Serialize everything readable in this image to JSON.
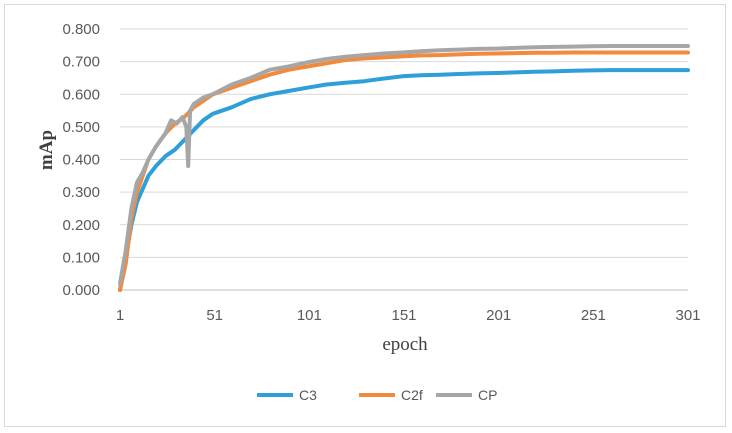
{
  "chart_data": {
    "type": "line",
    "title": "",
    "xlabel": "epoch",
    "ylabel": "mAp",
    "xlim": [
      1,
      301
    ],
    "ylim": [
      0,
      0.8
    ],
    "x_ticks": [
      "1",
      "51",
      "101",
      "151",
      "201",
      "251",
      "301"
    ],
    "y_ticks": [
      "0.000",
      "0.100",
      "0.200",
      "0.300",
      "0.400",
      "0.500",
      "0.600",
      "0.700",
      "0.800"
    ],
    "grid": "horizontal",
    "legend_position": "bottom",
    "series": [
      {
        "name": "C3",
        "color": "#2e9fd8",
        "points": [
          [
            1,
            0.0
          ],
          [
            4,
            0.1
          ],
          [
            7,
            0.2
          ],
          [
            10,
            0.27
          ],
          [
            13,
            0.31
          ],
          [
            16,
            0.35
          ],
          [
            20,
            0.38
          ],
          [
            25,
            0.41
          ],
          [
            30,
            0.43
          ],
          [
            35,
            0.46
          ],
          [
            40,
            0.49
          ],
          [
            45,
            0.52
          ],
          [
            50,
            0.54
          ],
          [
            60,
            0.56
          ],
          [
            70,
            0.585
          ],
          [
            80,
            0.6
          ],
          [
            90,
            0.61
          ],
          [
            100,
            0.62
          ],
          [
            110,
            0.63
          ],
          [
            120,
            0.635
          ],
          [
            130,
            0.64
          ],
          [
            140,
            0.648
          ],
          [
            150,
            0.655
          ],
          [
            160,
            0.658
          ],
          [
            170,
            0.66
          ],
          [
            180,
            0.662
          ],
          [
            190,
            0.664
          ],
          [
            200,
            0.665
          ],
          [
            210,
            0.667
          ],
          [
            220,
            0.669
          ],
          [
            230,
            0.67
          ],
          [
            240,
            0.672
          ],
          [
            250,
            0.673
          ],
          [
            260,
            0.674
          ],
          [
            270,
            0.674
          ],
          [
            280,
            0.674
          ],
          [
            290,
            0.674
          ],
          [
            301,
            0.674
          ]
        ]
      },
      {
        "name": "C2f",
        "color": "#f28a3c",
        "points": [
          [
            1,
            0.0
          ],
          [
            4,
            0.08
          ],
          [
            7,
            0.22
          ],
          [
            10,
            0.3
          ],
          [
            13,
            0.35
          ],
          [
            16,
            0.4
          ],
          [
            20,
            0.44
          ],
          [
            25,
            0.48
          ],
          [
            30,
            0.51
          ],
          [
            35,
            0.53
          ],
          [
            40,
            0.56
          ],
          [
            45,
            0.58
          ],
          [
            50,
            0.6
          ],
          [
            60,
            0.62
          ],
          [
            70,
            0.64
          ],
          [
            80,
            0.66
          ],
          [
            90,
            0.675
          ],
          [
            100,
            0.685
          ],
          [
            110,
            0.695
          ],
          [
            120,
            0.705
          ],
          [
            130,
            0.71
          ],
          [
            140,
            0.713
          ],
          [
            150,
            0.716
          ],
          [
            160,
            0.719
          ],
          [
            170,
            0.72
          ],
          [
            180,
            0.722
          ],
          [
            190,
            0.724
          ],
          [
            200,
            0.725
          ],
          [
            210,
            0.726
          ],
          [
            220,
            0.727
          ],
          [
            230,
            0.727
          ],
          [
            240,
            0.728
          ],
          [
            250,
            0.728
          ],
          [
            260,
            0.728
          ],
          [
            270,
            0.728
          ],
          [
            280,
            0.728
          ],
          [
            290,
            0.728
          ],
          [
            301,
            0.728
          ]
        ]
      },
      {
        "name": "CP",
        "color": "#a6a6a6",
        "points": [
          [
            1,
            0.02
          ],
          [
            4,
            0.12
          ],
          [
            7,
            0.25
          ],
          [
            10,
            0.33
          ],
          [
            13,
            0.36
          ],
          [
            16,
            0.4
          ],
          [
            20,
            0.44
          ],
          [
            25,
            0.48
          ],
          [
            28,
            0.52
          ],
          [
            31,
            0.51
          ],
          [
            34,
            0.53
          ],
          [
            36,
            0.5
          ],
          [
            37,
            0.38
          ],
          [
            38,
            0.55
          ],
          [
            40,
            0.57
          ],
          [
            45,
            0.59
          ],
          [
            50,
            0.6
          ],
          [
            60,
            0.63
          ],
          [
            70,
            0.65
          ],
          [
            80,
            0.675
          ],
          [
            90,
            0.685
          ],
          [
            100,
            0.698
          ],
          [
            110,
            0.708
          ],
          [
            120,
            0.715
          ],
          [
            130,
            0.72
          ],
          [
            140,
            0.725
          ],
          [
            150,
            0.728
          ],
          [
            160,
            0.732
          ],
          [
            170,
            0.735
          ],
          [
            180,
            0.737
          ],
          [
            190,
            0.739
          ],
          [
            200,
            0.74
          ],
          [
            210,
            0.742
          ],
          [
            220,
            0.744
          ],
          [
            230,
            0.745
          ],
          [
            240,
            0.746
          ],
          [
            250,
            0.747
          ],
          [
            260,
            0.748
          ],
          [
            270,
            0.748
          ],
          [
            280,
            0.748
          ],
          [
            290,
            0.748
          ],
          [
            301,
            0.748
          ]
        ]
      }
    ]
  }
}
